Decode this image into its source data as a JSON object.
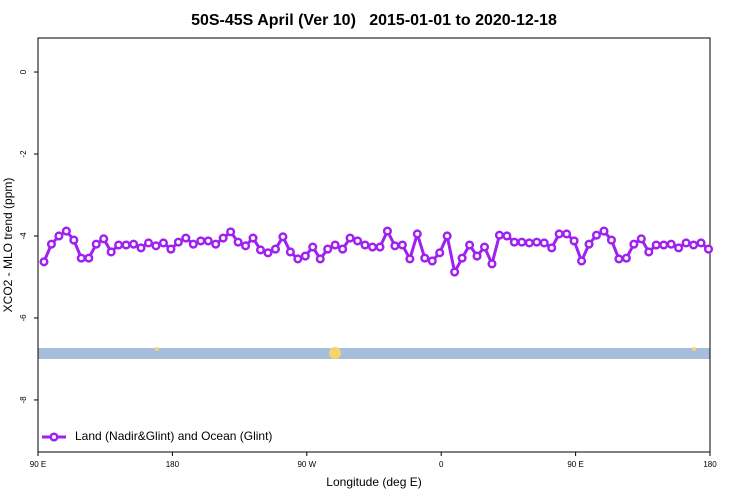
{
  "chart_data": {
    "type": "line",
    "title": "50S-45S April (Ver 10)   2015-01-01 to 2020-12-18",
    "x_label": "Longitude (deg E)",
    "y_label": "XCO2 - MLO trend (ppm)",
    "xlim": [
      90,
      540
    ],
    "xticks": [
      {
        "value": 90,
        "label": "90 E"
      },
      180,
      {
        "value": 270,
        "label": "90 W"
      },
      {
        "value": 360,
        "label": "0"
      },
      {
        "value": 450,
        "label": "90 E"
      },
      {
        "value": 540,
        "label": "180"
      }
    ],
    "ylim": [
      -9.27,
      0.83
    ],
    "yticks": [
      0,
      -2,
      -4,
      -6,
      -8
    ],
    "legend": "bottom-left",
    "x": [
      94,
      99,
      104,
      109,
      114,
      119,
      124,
      129,
      134,
      139,
      144,
      149,
      154,
      159,
      164,
      169,
      174,
      179,
      184,
      189,
      194,
      199,
      204,
      209,
      214,
      219,
      224,
      229,
      234,
      239,
      244,
      249,
      254,
      259,
      264,
      269,
      274,
      279,
      284,
      289,
      294,
      299,
      304,
      309,
      314,
      319,
      324,
      329,
      334,
      339,
      344,
      349,
      354,
      359,
      364,
      369,
      374,
      379,
      384,
      389,
      394,
      399,
      404,
      409,
      414,
      419,
      424,
      429,
      434,
      439,
      444,
      449,
      454,
      459,
      464,
      469,
      474,
      479,
      484,
      489,
      494,
      499,
      504,
      509,
      514,
      519,
      524,
      529,
      534,
      539
    ],
    "series": [
      {
        "name": "Land (Nadir&Glint) and Ocean (Glint)",
        "color": "#a020f0",
        "values": [
          -4.63,
          -4.2,
          -4.0,
          -3.88,
          -4.1,
          -4.54,
          -4.54,
          -4.2,
          -4.07,
          -4.39,
          -4.22,
          -4.22,
          -4.2,
          -4.29,
          -4.17,
          -4.24,
          -4.17,
          -4.32,
          -4.15,
          -4.05,
          -4.2,
          -4.12,
          -4.12,
          -4.2,
          -4.05,
          -3.9,
          -4.15,
          -4.24,
          -4.05,
          -4.34,
          -4.41,
          -4.32,
          -4.02,
          -4.39,
          -4.56,
          -4.49,
          -4.27,
          -4.56,
          -4.32,
          -4.22,
          -4.32,
          -4.05,
          -4.12,
          -4.22,
          -4.27,
          -4.27,
          -3.88,
          -4.24,
          -4.22,
          -4.56,
          -3.95,
          -4.54,
          -4.61,
          -4.41,
          -4.0,
          -4.88,
          -4.54,
          -4.22,
          -4.49,
          -4.27,
          -4.68,
          -3.98,
          -4.0,
          -4.15,
          -4.15,
          -4.17,
          -4.15,
          -4.17,
          -4.29,
          -3.95,
          -3.95,
          -4.12,
          -4.61,
          -4.2,
          -3.98,
          -3.88,
          -4.1,
          -4.56,
          -4.54,
          -4.2,
          -4.07,
          -4.39,
          -4.22,
          -4.22,
          -4.2,
          -4.29,
          -4.17,
          -4.22,
          -4.17,
          -4.32
        ]
      }
    ]
  }
}
